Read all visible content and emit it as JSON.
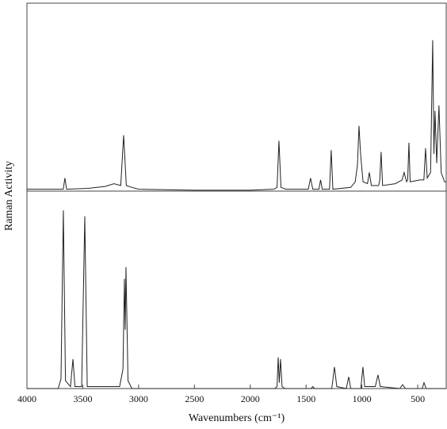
{
  "chart_data": [
    {
      "type": "line",
      "color": "#222222",
      "ylabel": "Raman Activity",
      "xlim": [
        4000,
        245
      ],
      "ylim": [
        0,
        100
      ],
      "x": [
        4000,
        3700,
        3675,
        3660,
        3645,
        3450,
        3300,
        3220,
        3160,
        3134,
        3110,
        3060,
        3000,
        2500,
        2000,
        1790,
        1760,
        1743,
        1725,
        1680,
        1480,
        1460,
        1440,
        1385,
        1370,
        1355,
        1290,
        1275,
        1260,
        1100,
        1060,
        1040,
        1026,
        1012,
        990,
        950,
        934,
        915,
        850,
        840,
        828,
        815,
        700,
        640,
        622,
        600,
        590,
        579,
        568,
        480,
        445,
        430,
        415,
        385,
        366,
        355,
        345,
        330,
        310,
        290,
        260,
        245
      ],
      "values": [
        1,
        1,
        1,
        7,
        1,
        1.5,
        2.5,
        4,
        3,
        30,
        3,
        2,
        1,
        0.5,
        0.5,
        1,
        2,
        27,
        2,
        1,
        1,
        7,
        1,
        1,
        6,
        1,
        1,
        22,
        1,
        2,
        5,
        14,
        35,
        20,
        5,
        4,
        10,
        3,
        3,
        6,
        21,
        3,
        4,
        6,
        10,
        5,
        6,
        26,
        5,
        6,
        6,
        23,
        7,
        10,
        81,
        20,
        43,
        15,
        46,
        10,
        5,
        5
      ]
    },
    {
      "type": "line",
      "color": "#222222",
      "xlabel": "Wavenumbers (cm⁻¹)",
      "xlim": [
        4000,
        245
      ],
      "ylim": [
        0,
        100
      ],
      "xticks": [
        4000,
        3500,
        3000,
        2500,
        2000,
        1500,
        1000,
        500
      ],
      "x": [
        4000,
        3720,
        3695,
        3674,
        3655,
        3610,
        3588,
        3570,
        3510,
        3482,
        3460,
        3170,
        3140,
        3127,
        3120,
        3113,
        3095,
        3060,
        1780,
        1760,
        1750,
        1740,
        1729,
        1715,
        1690,
        1455,
        1440,
        1425,
        1270,
        1246,
        1225,
        1140,
        1118,
        1100,
        1010,
        991,
        975,
        880,
        856,
        835,
        660,
        636,
        610,
        460,
        444,
        425,
        245
      ],
      "values": [
        0,
        0,
        5,
        91,
        4,
        1,
        15,
        1,
        1,
        88,
        1,
        1,
        10,
        56,
        30,
        62,
        4,
        0,
        0,
        1,
        16,
        3,
        15,
        1,
        0,
        0,
        1,
        0,
        0,
        11,
        1,
        0,
        6,
        0,
        0,
        11,
        1,
        1,
        7,
        1,
        0,
        2,
        0,
        0,
        3,
        0,
        0
      ]
    }
  ]
}
